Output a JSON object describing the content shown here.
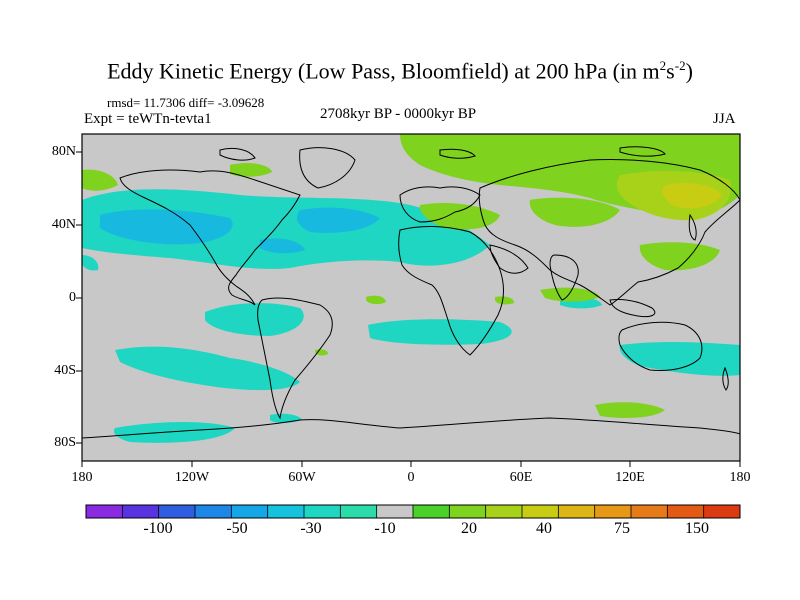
{
  "title": {
    "main": "Eddy Kinetic Energy (Low Pass, Bloomfield) at 200 hPa (in m",
    "sup1": "2",
    "mid": "s",
    "sup2": "-2",
    "end": ")"
  },
  "stats": "rmsd= 11.7306 diff= -3.09628",
  "experiment": "Expt = teWTn-tevta1",
  "period": "2708kyr BP - 0000kyr BP",
  "season": "JJA",
  "x_ticks": [
    "180",
    "120W",
    "60W",
    "0",
    "60E",
    "120E",
    "180"
  ],
  "y_ticks": [
    "80N",
    "40N",
    "0",
    "40S",
    "80S"
  ],
  "colorbar": {
    "labels": [
      "-100",
      "-50",
      "-30",
      "-10",
      "20",
      "40",
      "75",
      "150"
    ],
    "colors": [
      "#8a2be2",
      "#5a33e0",
      "#2f5fe0",
      "#1e86e6",
      "#14a6e6",
      "#17c2de",
      "#1ed6c2",
      "#2bdcaa",
      "#c8c8c8",
      "#4ad12a",
      "#7fd21e",
      "#a8d21a",
      "#c8cc12",
      "#dcb614",
      "#e69816",
      "#e67a18",
      "#e25a14",
      "#dc3a12"
    ]
  },
  "colors": {
    "background": "#c8c8c8",
    "negative_cyan": "#1ed6c2",
    "negative_blue": "#17b9de",
    "positive_green": "#7fd21e",
    "positive_yellow": "#c8cc12"
  }
}
